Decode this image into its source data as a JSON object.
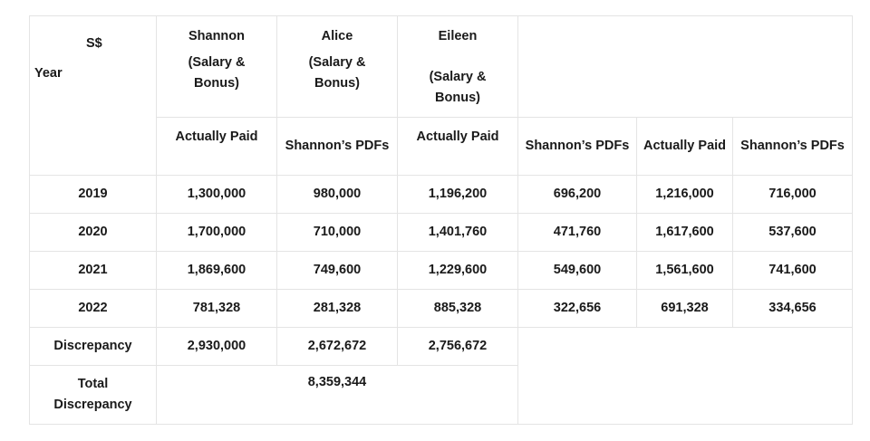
{
  "header": {
    "currency": "S$",
    "year_label": "Year",
    "persons": [
      {
        "name": "Shannon",
        "detail_line1": "(Salary &",
        "detail_line2": "Bonus)"
      },
      {
        "name": "Alice",
        "detail_line1": "(Salary &",
        "detail_line2": "Bonus)"
      },
      {
        "name": "Eileen",
        "detail_line1": "(Salary &",
        "detail_line2": "Bonus)"
      }
    ],
    "subheaders": [
      "Actually Paid",
      "Shannon’s PDFs",
      "Actually Paid",
      "Shannon’s PDFs",
      "Actually Paid",
      "Shannon’s PDFs"
    ]
  },
  "rows": [
    {
      "year": "2019",
      "values": [
        "1,300,000",
        "980,000",
        "1,196,200",
        "696,200",
        "1,216,000",
        "716,000"
      ]
    },
    {
      "year": "2020",
      "values": [
        "1,700,000",
        "710,000",
        "1,401,760",
        "471,760",
        "1,617,600",
        "537,600"
      ]
    },
    {
      "year": "2021",
      "values": [
        "1,869,600",
        "749,600",
        "1,229,600",
        "549,600",
        "1,561,600",
        "741,600"
      ]
    },
    {
      "year": "2022",
      "values": [
        "781,328",
        "281,328",
        "885,328",
        "322,656",
        "691,328",
        "334,656"
      ]
    }
  ],
  "discrepancy": {
    "label": "Discrepancy",
    "values": [
      "2,930,000",
      "2,672,672",
      "2,756,672"
    ]
  },
  "total": {
    "label_line1": "Total",
    "label_line2": "Discrepancy",
    "value": "8,359,344"
  }
}
